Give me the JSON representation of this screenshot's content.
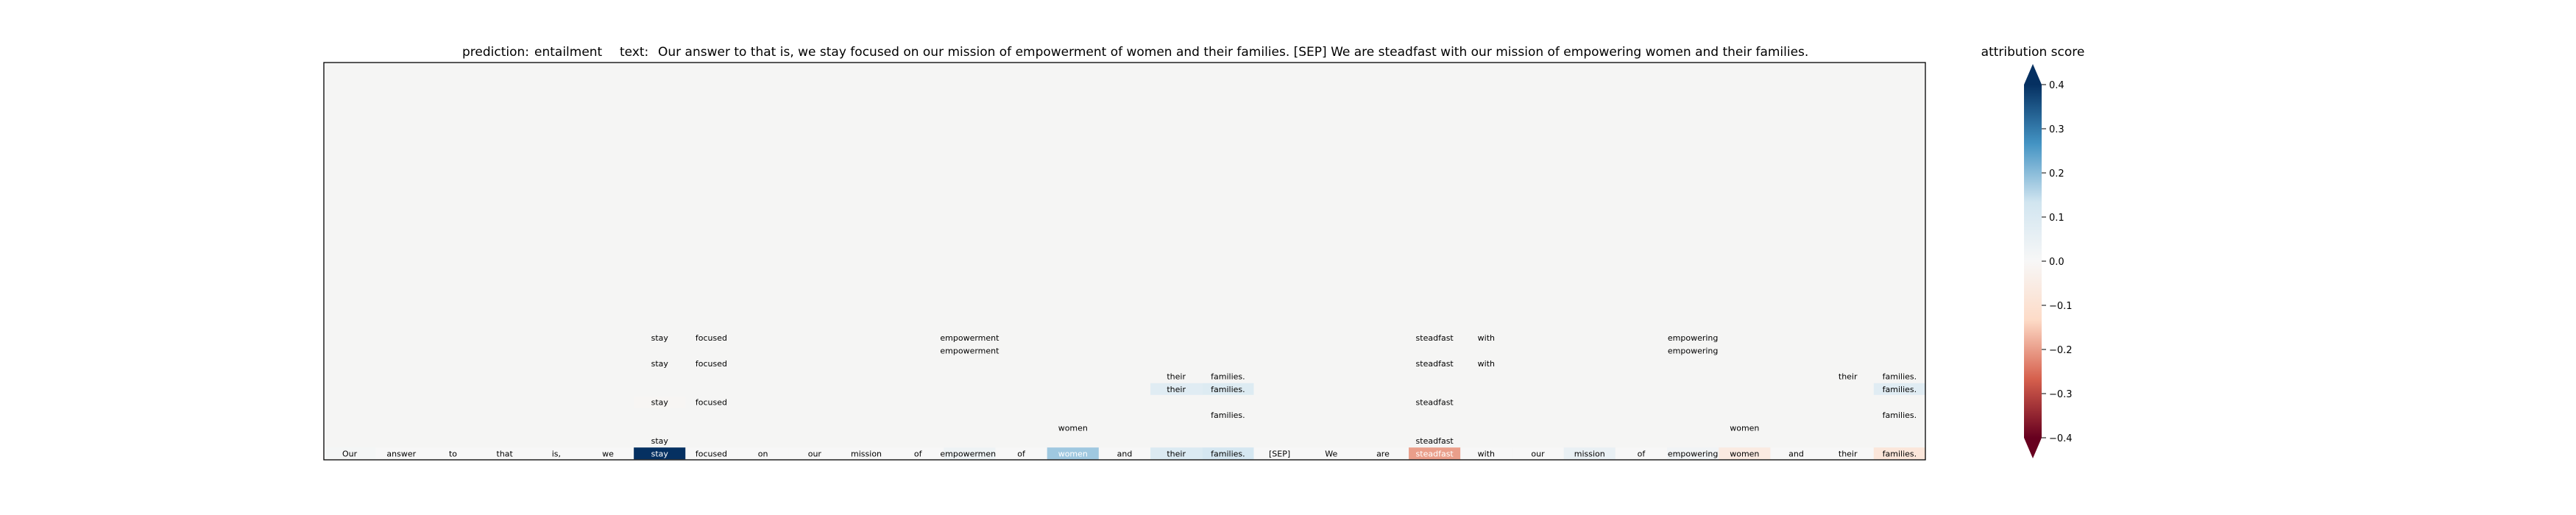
{
  "chart_data": {
    "type": "heatmap",
    "title_prediction_label": "prediction:",
    "title_prediction": "entailment",
    "title_text_label": "text:",
    "title_text": "Our answer to that is, we stay focused on our mission of empowerment of women and their families. [SEP] We are steadfast with our mission of empowering women and their families.",
    "tokens": [
      "Our",
      "answer",
      "to",
      "that",
      "is,",
      "we",
      "stay",
      "focused",
      "on",
      "our",
      "mission",
      "of",
      "empowerment",
      "of",
      "women",
      "and",
      "their",
      "families.",
      "[SEP]",
      "We",
      "are",
      "steadfast",
      "with",
      "our",
      "mission",
      "of",
      "empowering",
      "women",
      "and",
      "their",
      "families."
    ],
    "token_scores": [
      0.01,
      0.0,
      0.0,
      0.0,
      0.0,
      0.0,
      0.42,
      0.0,
      0.0,
      0.0,
      0.0,
      0.0,
      0.03,
      0.0,
      0.18,
      0.0,
      0.1,
      0.12,
      0.0,
      0.0,
      0.0,
      -0.2,
      0.0,
      0.0,
      0.05,
      0.0,
      0.02,
      -0.06,
      0.0,
      0.0,
      -0.08
    ],
    "rows_from_bottom": [
      {
        "row": 1,
        "cells": [
          {
            "col": 6,
            "text": "stay",
            "score": 0.0
          },
          {
            "col": 21,
            "text": "steadfast",
            "score": 0.0
          }
        ]
      },
      {
        "row": 2,
        "cells": [
          {
            "col": 14,
            "text": "women",
            "score": 0.0
          },
          {
            "col": 27,
            "text": "women",
            "score": 0.0
          }
        ]
      },
      {
        "row": 3,
        "cells": [
          {
            "col": 17,
            "text": "families.",
            "score": 0.0
          },
          {
            "col": 30,
            "text": "families.",
            "score": 0.0
          }
        ]
      },
      {
        "row": 4,
        "cells": [
          {
            "col": 6,
            "text": "stay",
            "score": -0.01
          },
          {
            "col": 7,
            "text": "focused",
            "score": 0.0
          },
          {
            "col": 21,
            "text": "steadfast",
            "score": 0.0
          }
        ]
      },
      {
        "row": 5,
        "cells": [
          {
            "col": 16,
            "text": "their",
            "score": 0.08
          },
          {
            "col": 17,
            "text": "families.",
            "score": 0.09
          },
          {
            "col": 30,
            "text": "families.",
            "score": 0.08
          }
        ]
      },
      {
        "row": 6,
        "cells": [
          {
            "col": 16,
            "text": "their",
            "score": 0.0
          },
          {
            "col": 17,
            "text": "families.",
            "score": 0.0
          },
          {
            "col": 29,
            "text": "their",
            "score": 0.0
          },
          {
            "col": 30,
            "text": "families.",
            "score": 0.0
          }
        ]
      },
      {
        "row": 7,
        "cells": [
          {
            "col": 6,
            "text": "stay",
            "score": 0.0
          },
          {
            "col": 7,
            "text": "focused",
            "score": 0.0
          },
          {
            "col": 21,
            "text": "steadfast",
            "score": 0.0
          },
          {
            "col": 22,
            "text": "with",
            "score": 0.0
          }
        ]
      },
      {
        "row": 8,
        "cells": [
          {
            "col": 12,
            "text": "empowerment",
            "score": 0.0
          },
          {
            "col": 26,
            "text": "empowering",
            "score": 0.0
          }
        ]
      },
      {
        "row": 9,
        "cells": [
          {
            "col": 6,
            "text": "stay",
            "score": 0.0
          },
          {
            "col": 7,
            "text": "focused",
            "score": 0.0
          },
          {
            "col": 12,
            "text": "empowerment",
            "score": 0.0
          },
          {
            "col": 21,
            "text": "steadfast",
            "score": 0.0
          },
          {
            "col": 22,
            "text": "with",
            "score": 0.0
          },
          {
            "col": 26,
            "text": "empowering",
            "score": 0.0
          }
        ]
      }
    ],
    "colorbar": {
      "label": "attribution score",
      "range": [
        -0.4,
        0.4
      ],
      "ticks": [
        0.4,
        0.3,
        0.2,
        0.1,
        0.0,
        -0.1,
        -0.2,
        -0.3,
        -0.4
      ],
      "tick_labels": [
        "0.4",
        "0.3",
        "0.2",
        "0.1",
        "0.0",
        "−0.1",
        "−0.2",
        "−0.3",
        "−0.4"
      ],
      "colormap": "RdBu",
      "extend": "both"
    },
    "colors": {
      "neg_strong": "#67001f",
      "neg_mid": "#d6604d",
      "neg_light": "#fddbc7",
      "neutral": "#f7f7f7",
      "pos_light": "#d1e5f0",
      "pos_mid": "#4393c3",
      "pos_strong": "#053061",
      "plot_background": "#f5f5f4"
    }
  }
}
